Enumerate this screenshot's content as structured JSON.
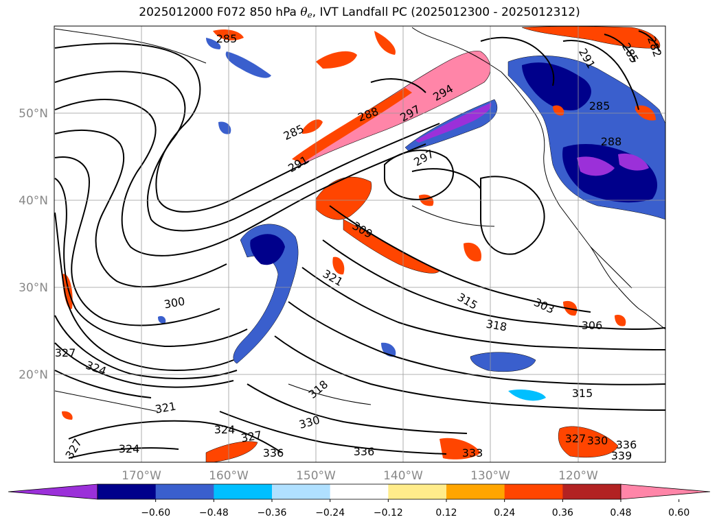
{
  "title": {
    "prefix": "2025012000 F072 850 hPa ",
    "theta": "θ",
    "theta_sub": "e",
    "suffix": ", IVT Landfall PC (2025012300 - 2025012312)"
  },
  "map": {
    "lon_labels": [
      "170°W",
      "160°W",
      "150°W",
      "140°W",
      "130°W",
      "120°W"
    ],
    "lat_labels": [
      "50°N",
      "40°N",
      "30°N",
      "20°N"
    ],
    "contour_labels": [
      "285",
      "285",
      "288",
      "291",
      "294",
      "297",
      "297",
      "291",
      "285",
      "282",
      "288",
      "285",
      "309",
      "321",
      "315",
      "303",
      "306",
      "318",
      "300",
      "324",
      "327",
      "321",
      "324",
      "327",
      "330",
      "318",
      "315",
      "336",
      "336",
      "333",
      "324",
      "327",
      "330",
      "336",
      "339",
      "327"
    ],
    "ocean_color": "#ffffff"
  },
  "colorbar": {
    "tick_labels": [
      "−0.60",
      "−0.48",
      "−0.36",
      "−0.24",
      "−0.12",
      "0.12",
      "0.24",
      "0.36",
      "0.48",
      "0.60"
    ],
    "tick_values": [
      -0.6,
      -0.48,
      -0.36,
      -0.24,
      -0.12,
      0.12,
      0.24,
      0.36,
      0.48,
      0.6
    ],
    "colors": [
      "#9b30d9",
      "#00008b",
      "#3a5fcd",
      "#00bfff",
      "#b0e0ff",
      "#ffffff",
      "#ffec8b",
      "#ffa500",
      "#ff4500",
      "#b22222",
      "#ff85a8"
    ]
  }
}
